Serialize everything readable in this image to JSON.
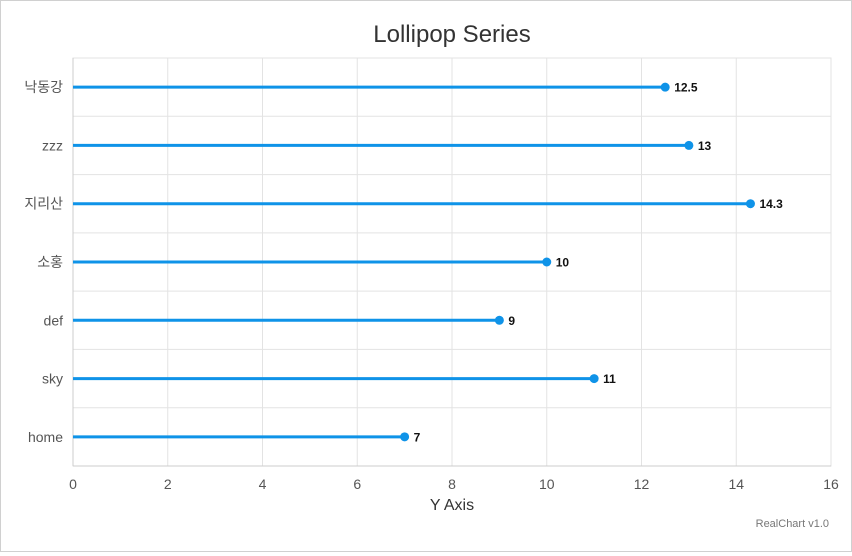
{
  "chart_data": {
    "type": "lollipop",
    "orientation": "horizontal",
    "title": "Lollipop Series",
    "xlabel": "Y Axis",
    "ylabel": "",
    "categories": [
      "낙동강",
      "zzz",
      "지리산",
      "소홍",
      "def",
      "sky",
      "home"
    ],
    "values": [
      12.5,
      13,
      14.3,
      10,
      9,
      11,
      7
    ],
    "value_axis": {
      "min": 0,
      "max": 16,
      "ticks": [
        0,
        2,
        4,
        6,
        8,
        10,
        12,
        14,
        16
      ]
    },
    "grid": true,
    "legend": "none",
    "data_labels": true,
    "series_color": "#0f93e8",
    "credit": "RealChart v1.0"
  }
}
